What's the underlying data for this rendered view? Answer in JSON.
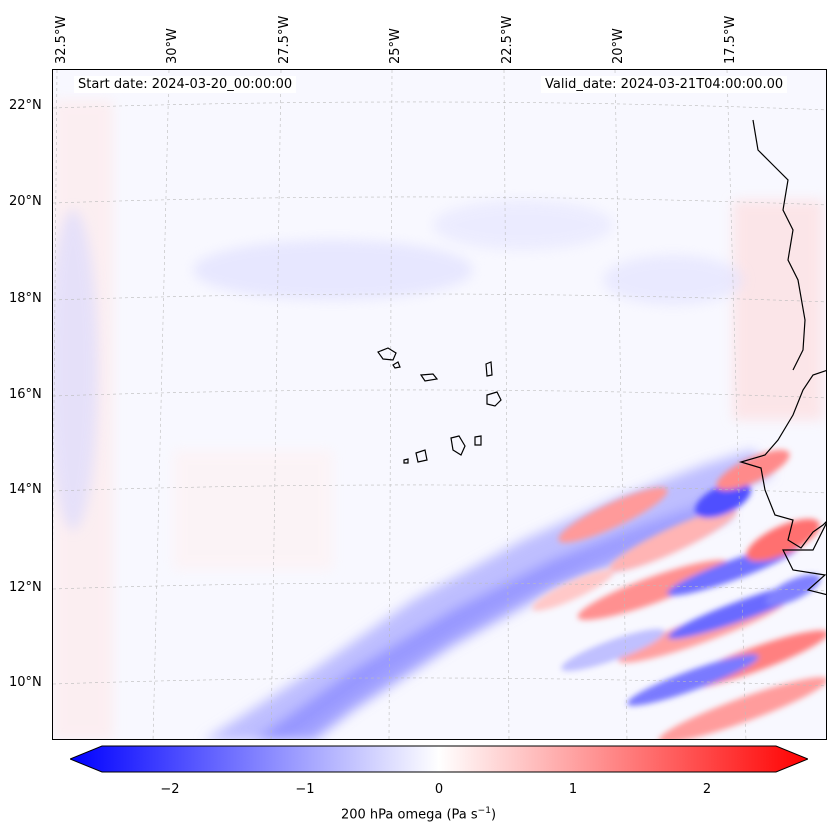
{
  "map": {
    "header_left": "Start date: 2024-03-20_00:00:00",
    "header_right": "Valid_date: 2024-03-21T04:00:00.00",
    "lon_labels": [
      "32.5°W",
      "30°W",
      "27.5°W",
      "25°W",
      "22.5°W",
      "20°W",
      "17.5°W"
    ],
    "lat_labels": [
      "22°N",
      "20°N",
      "18°N",
      "16°N",
      "14°N",
      "12°N",
      "10°N"
    ],
    "colormap": "bwr",
    "colors": {
      "negative": "#0000ff",
      "zero": "#ffffff",
      "positive": "#ff0000",
      "coast": "#000000",
      "grid": "#bbbbbb"
    }
  },
  "colorbar": {
    "ticks": [
      "−2",
      "−1",
      "0",
      "1",
      "2"
    ],
    "label": "200 hPa omega (Pa s",
    "label_sup": "−1",
    "label_end": ")",
    "range": [
      -2.5,
      2.5
    ]
  }
}
